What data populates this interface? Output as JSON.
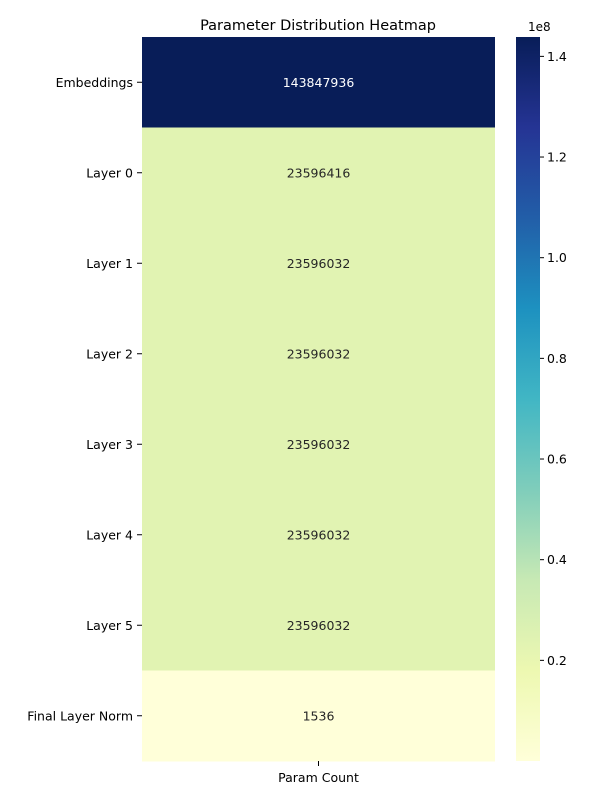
{
  "chart_data": {
    "type": "heatmap",
    "title": "Parameter Distribution Heatmap",
    "xlabel": "",
    "ylabel": "",
    "columns": [
      "Param Count"
    ],
    "rows": [
      {
        "label": "Embeddings",
        "value": 143847936,
        "value_label": "143847936"
      },
      {
        "label": "Layer 0",
        "value": 23596416,
        "value_label": "23596416"
      },
      {
        "label": "Layer 1",
        "value": 23596032,
        "value_label": "23596032"
      },
      {
        "label": "Layer 2",
        "value": 23596032,
        "value_label": "23596032"
      },
      {
        "label": "Layer 3",
        "value": 23596032,
        "value_label": "23596032"
      },
      {
        "label": "Layer 4",
        "value": 23596032,
        "value_label": "23596032"
      },
      {
        "label": "Layer 5",
        "value": 23596032,
        "value_label": "23596032"
      },
      {
        "label": "Final Layer Norm",
        "value": 1536,
        "value_label": "1536"
      }
    ],
    "colormap": "YlGnBu",
    "colorbar": {
      "multiplier_label": "1e8",
      "range": [
        1536,
        143847936
      ],
      "ticks": [
        {
          "value": 20000000,
          "label": "0.2"
        },
        {
          "value": 40000000,
          "label": "0.4"
        },
        {
          "value": 60000000,
          "label": "0.6"
        },
        {
          "value": 80000000,
          "label": "0.8"
        },
        {
          "value": 100000000,
          "label": "1.0"
        },
        {
          "value": 120000000,
          "label": "1.2"
        },
        {
          "value": 140000000,
          "label": "1.4"
        }
      ]
    }
  }
}
